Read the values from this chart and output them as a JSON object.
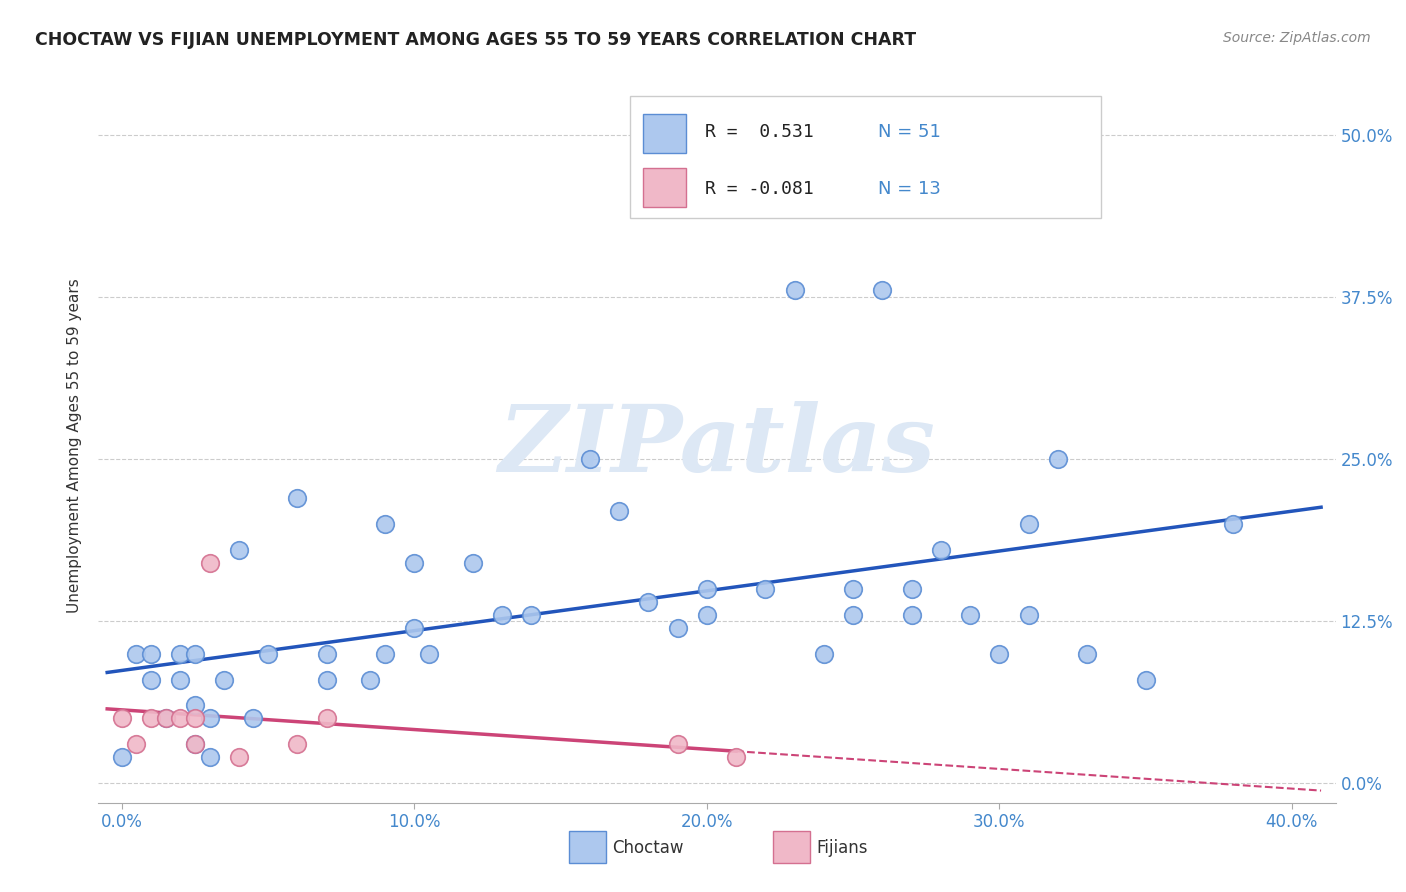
{
  "title": "CHOCTAW VS FIJIAN UNEMPLOYMENT AMONG AGES 55 TO 59 YEARS CORRELATION CHART",
  "source": "Source: ZipAtlas.com",
  "xlabel_ticks": [
    "0.0%",
    "10.0%",
    "20.0%",
    "30.0%",
    "40.0%"
  ],
  "xlabel_tick_vals": [
    0.0,
    0.1,
    0.2,
    0.3,
    0.4
  ],
  "ylabel": "Unemployment Among Ages 55 to 59 years",
  "ylabel_ticks": [
    "0.0%",
    "12.5%",
    "25.0%",
    "37.5%",
    "50.0%"
  ],
  "ylabel_tick_vals": [
    0.0,
    0.125,
    0.25,
    0.375,
    0.5
  ],
  "xlim": [
    -0.008,
    0.415
  ],
  "ylim": [
    -0.015,
    0.535
  ],
  "choctaw_r": 0.531,
  "choctaw_n": 51,
  "fijian_r": -0.081,
  "fijian_n": 13,
  "choctaw_color": "#adc8ee",
  "choctaw_edge_color": "#5b8dd4",
  "choctaw_line_color": "#2255bb",
  "fijian_color": "#f0b8c8",
  "fijian_edge_color": "#d47090",
  "fijian_line_color": "#cc4477",
  "watermark_color": "#dde8f5",
  "watermark": "ZIPatlas",
  "choctaw_x": [
    0.0,
    0.005,
    0.01,
    0.01,
    0.015,
    0.02,
    0.02,
    0.025,
    0.025,
    0.025,
    0.03,
    0.03,
    0.035,
    0.04,
    0.045,
    0.05,
    0.06,
    0.07,
    0.07,
    0.085,
    0.09,
    0.09,
    0.1,
    0.1,
    0.105,
    0.12,
    0.13,
    0.14,
    0.16,
    0.17,
    0.18,
    0.19,
    0.2,
    0.2,
    0.22,
    0.23,
    0.24,
    0.25,
    0.25,
    0.26,
    0.27,
    0.27,
    0.28,
    0.29,
    0.3,
    0.31,
    0.31,
    0.32,
    0.33,
    0.35,
    0.38
  ],
  "choctaw_y": [
    0.02,
    0.1,
    0.08,
    0.1,
    0.05,
    0.08,
    0.1,
    0.03,
    0.06,
    0.1,
    0.02,
    0.05,
    0.08,
    0.18,
    0.05,
    0.1,
    0.22,
    0.08,
    0.1,
    0.08,
    0.1,
    0.2,
    0.12,
    0.17,
    0.1,
    0.17,
    0.13,
    0.13,
    0.25,
    0.21,
    0.14,
    0.12,
    0.13,
    0.15,
    0.15,
    0.38,
    0.1,
    0.13,
    0.15,
    0.38,
    0.13,
    0.15,
    0.18,
    0.13,
    0.1,
    0.2,
    0.13,
    0.25,
    0.1,
    0.08,
    0.2
  ],
  "fijian_x": [
    0.0,
    0.005,
    0.01,
    0.015,
    0.02,
    0.025,
    0.025,
    0.03,
    0.04,
    0.06,
    0.07,
    0.19,
    0.21
  ],
  "fijian_y": [
    0.05,
    0.03,
    0.05,
    0.05,
    0.05,
    0.03,
    0.05,
    0.17,
    0.02,
    0.03,
    0.05,
    0.03,
    0.02
  ],
  "legend_r1": "R =  0.531",
  "legend_n1": "N = 51",
  "legend_r2": "R = -0.081",
  "legend_n2": "N = 13"
}
